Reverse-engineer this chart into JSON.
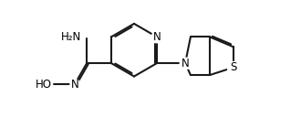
{
  "background_color": "#ffffff",
  "line_color": "#1a1a1a",
  "text_color": "#000000",
  "line_width": 1.5,
  "font_size": 8.5,
  "fig_width": 3.3,
  "fig_height": 1.52,
  "dpi": 100,
  "xlim": [
    0,
    10
  ],
  "ylim": [
    0,
    4.6
  ]
}
